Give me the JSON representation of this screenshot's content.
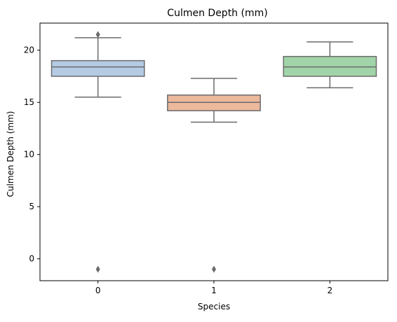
{
  "chart_data": {
    "type": "box",
    "title": "Culmen Depth (mm)",
    "xlabel": "Species",
    "ylabel": "Culmen Depth (mm)",
    "ylim": [
      -2.1,
      22.6
    ],
    "yticks": [
      0,
      5,
      10,
      15,
      20
    ],
    "grid": false,
    "categories": [
      "0",
      "1",
      "2"
    ],
    "boxes": [
      {
        "category": "0",
        "whisker_low": 15.5,
        "q1": 17.5,
        "median": 18.4,
        "q3": 19.0,
        "whisker_high": 21.2,
        "outliers": [
          21.5,
          -1.0
        ],
        "color": "#b5cbe4"
      },
      {
        "category": "1",
        "whisker_low": 13.1,
        "q1": 14.2,
        "median": 15.0,
        "q3": 15.7,
        "whisker_high": 17.3,
        "outliers": [
          -1.0
        ],
        "color": "#ecb99d"
      },
      {
        "category": "2",
        "whisker_low": 16.4,
        "q1": 17.5,
        "median": 18.4,
        "q3": 19.4,
        "whisker_high": 20.8,
        "outliers": [],
        "color": "#a1d5a9"
      }
    ],
    "line_color": "#6b6b6b"
  }
}
